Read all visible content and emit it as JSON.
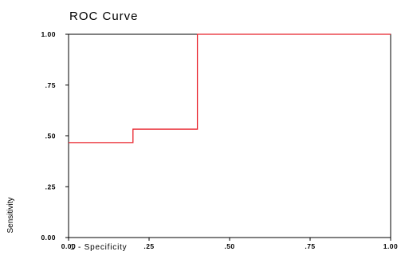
{
  "chart_data": {
    "type": "line",
    "title": "ROC Curve",
    "xlabel": "1 - Specificity",
    "ylabel": "Sensitivity",
    "xlim": [
      0,
      1
    ],
    "ylim": [
      0,
      1
    ],
    "x_ticks": [
      0,
      0.25,
      0.5,
      0.75,
      1
    ],
    "y_ticks": [
      0,
      0.25,
      0.5,
      0.75,
      1
    ],
    "x_tick_labels": [
      "0.00",
      ".25",
      ".50",
      ".75",
      "1.00"
    ],
    "y_tick_labels": [
      "0.00",
      ".25",
      ".50",
      ".75",
      "1.00"
    ],
    "grid": false,
    "series": [
      {
        "color": "#e8202a",
        "x": [
          0,
          0.2,
          0.2,
          0.4,
          0.4,
          1.0
        ],
        "y": [
          0.467,
          0.467,
          0.533,
          0.533,
          1.0,
          1.0
        ]
      }
    ]
  }
}
